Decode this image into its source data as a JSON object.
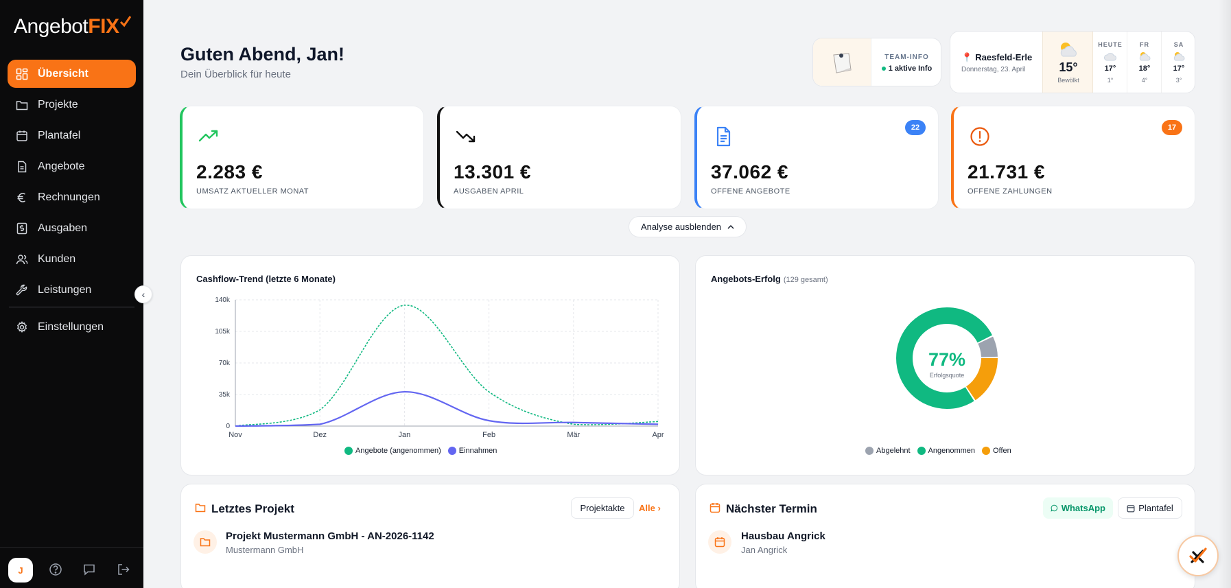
{
  "brand": {
    "name_part1": "Angebot",
    "name_part2": "FIX",
    "accent": "#f97316"
  },
  "sidebar": {
    "items": [
      {
        "label": "Übersicht",
        "icon": "dashboard-icon",
        "active": true
      },
      {
        "label": "Projekte",
        "icon": "folder-icon"
      },
      {
        "label": "Plantafel",
        "icon": "calendar-icon"
      },
      {
        "label": "Angebote",
        "icon": "document-icon"
      },
      {
        "label": "Rechnungen",
        "icon": "euro-icon"
      },
      {
        "label": "Ausgaben",
        "icon": "receipt-icon"
      },
      {
        "label": "Kunden",
        "icon": "users-icon"
      },
      {
        "label": "Leistungen",
        "icon": "wrench-icon"
      }
    ],
    "settings_label": "Einstellungen",
    "avatar_initial": "J"
  },
  "header": {
    "greeting": "Guten Abend, Jan!",
    "subtitle": "Dein Überblick für heute"
  },
  "team": {
    "label": "TEAM-INFO",
    "info": "1 aktive Info"
  },
  "weather": {
    "location": "Raesfeld-Erle",
    "date": "Donnerstag, 23. April",
    "now_temp": "15°",
    "now_desc": "Bewölkt",
    "days": [
      {
        "name": "HEUTE",
        "hi": "17°",
        "lo": "1°",
        "icon": "cloud-icon"
      },
      {
        "name": "FR",
        "hi": "18°",
        "lo": "4°",
        "icon": "sun-cloud-icon"
      },
      {
        "name": "SA",
        "hi": "17°",
        "lo": "3°",
        "icon": "sun-cloud-icon"
      }
    ]
  },
  "kpis": [
    {
      "value": "2.283 €",
      "label": "UMSATZ AKTUELLER MONAT",
      "color": "#22c55e",
      "icon": "trending-up-icon"
    },
    {
      "value": "13.301 €",
      "label": "AUSGABEN APRIL",
      "color": "#111111",
      "icon": "trending-down-icon"
    },
    {
      "value": "37.062 €",
      "label": "OFFENE ANGEBOTE",
      "color": "#3b82f6",
      "icon": "file-text-icon",
      "badge": "22"
    },
    {
      "value": "21.731 €",
      "label": "OFFENE ZAHLUNGEN",
      "color": "#f97316",
      "icon": "alert-circle-icon",
      "badge": "17"
    }
  ],
  "analyse_toggle": "Analyse ausblenden",
  "cashflow": {
    "title": "Cashflow-Trend (letzte 6 Monate)",
    "chart_data": {
      "type": "line",
      "x": [
        "Nov",
        "Dez",
        "Jan",
        "Feb",
        "Mär",
        "Apr"
      ],
      "ylim": [
        0,
        140000
      ],
      "yticks": [
        "0",
        "35k",
        "70k",
        "105k",
        "140k"
      ],
      "ytick_values": [
        0,
        35000,
        70000,
        105000,
        140000
      ],
      "grid": true,
      "legend": "bottom",
      "series": [
        {
          "name": "Angebote (angenommen)",
          "values": [
            0,
            18000,
            134000,
            38000,
            2000,
            5000
          ],
          "color": "#10b981",
          "dashed": true
        },
        {
          "name": "Einnahmen",
          "values": [
            0,
            2000,
            38000,
            6000,
            4000,
            2000
          ],
          "color": "#6366f1",
          "dashed": false
        }
      ]
    }
  },
  "success": {
    "title": "Angebots-Erfolg",
    "total": "(129 gesamt)",
    "percent": "77%",
    "caption": "Erfolgsquote",
    "chart_data": {
      "type": "pie",
      "legend": "bottom",
      "slices": [
        {
          "name": "Abgelehnt",
          "value": 7,
          "color": "#9ca3af"
        },
        {
          "name": "Angenommen",
          "value": 77,
          "color": "#10b981"
        },
        {
          "name": "Offen",
          "value": 16,
          "color": "#f59e0b"
        }
      ]
    }
  },
  "project": {
    "title": "Letztes Projekt",
    "button": "Projektakte",
    "link": "Alle",
    "name": "Projekt Mustermann GmbH - AN-2026-1142",
    "client": "Mustermann GmbH"
  },
  "appointment": {
    "title": "Nächster Termin",
    "whatsapp": "WhatsApp",
    "plantafel": "Plantafel",
    "name": "Hausbau Angrick",
    "person": "Jan Angrick"
  }
}
